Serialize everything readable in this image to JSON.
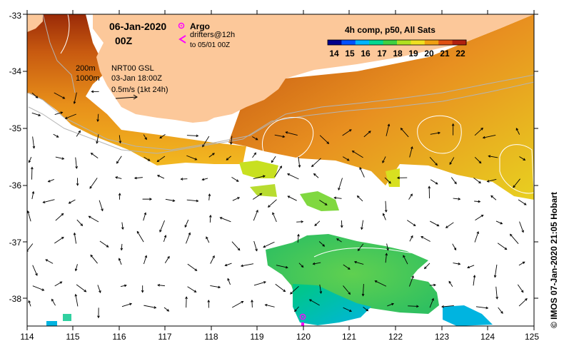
{
  "header": {
    "date": "06-Jan-2020",
    "time": "00Z"
  },
  "legend_argo": {
    "argo_label": "Argo",
    "drifters_label": "drifters@12h",
    "drifters_range": "to 05/01 00Z",
    "argo_color": "#ff00ff",
    "drifter_color": "#ff00ff"
  },
  "isobaths": {
    "line1": "200m",
    "line2": "1000m"
  },
  "current_info": {
    "product": "NRT00 GSL",
    "time": "03-Jan 18:00Z",
    "scale": "0.5m/s (1kt 24h)"
  },
  "colorbar": {
    "title": "4h comp, p50, All Sats",
    "ticks": [
      "14",
      "15",
      "16",
      "17",
      "18",
      "19",
      "20",
      "21",
      "22"
    ],
    "colors": [
      "#00008b",
      "#0050ff",
      "#00b4ff",
      "#00d890",
      "#40d040",
      "#b0e020",
      "#f0e020",
      "#f0a010",
      "#e05010",
      "#b02010"
    ]
  },
  "axes": {
    "x_ticks": [
      "114",
      "115",
      "116",
      "117",
      "118",
      "119",
      "120",
      "121",
      "122",
      "123",
      "124",
      "125"
    ],
    "y_ticks": [
      "-33",
      "-34",
      "-35",
      "-36",
      "-37",
      "-38"
    ]
  },
  "credit": "© IMOS 07-Jan-2020 21:05 Hobart",
  "colors": {
    "land": "#fcc89a",
    "frame": "#000000",
    "isobath": "#b4b4b4",
    "contour": "#ffffff"
  }
}
